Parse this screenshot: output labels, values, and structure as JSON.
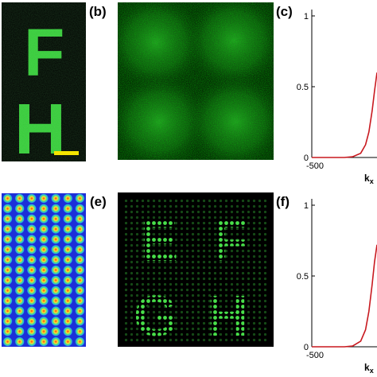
{
  "panels": {
    "a": {
      "letters": [
        "F",
        "H"
      ],
      "scalebar_color": "#f4e500"
    },
    "b": {
      "label": "(b)"
    },
    "c": {
      "label": "(c)"
    },
    "d": {
      "grid_rows": 15,
      "grid_cols": 7
    },
    "e": {
      "label": "(e)",
      "letters": [
        "E",
        "F",
        "G",
        "H"
      ]
    },
    "f": {
      "label": "(f)"
    }
  },
  "colors": {
    "green_signal": "#38c93a",
    "background_dark": "#000000",
    "dot_background": "#1c2fd8",
    "curve": "#c8191f"
  },
  "chart_data": [
    {
      "panel": "c",
      "type": "line",
      "ylim": [
        0,
        1
      ],
      "y_ticks": [
        "1",
        "0.5",
        "0"
      ],
      "x_ticks": [
        "-500"
      ],
      "xlabel_main": "k",
      "xlabel_sub": "x",
      "series": [
        {
          "x": [
            -500,
            -400,
            -300,
            -250,
            -200,
            -170,
            -150,
            -130,
            -115,
            -100
          ],
          "y": [
            0,
            0,
            0,
            0.005,
            0.03,
            0.09,
            0.18,
            0.33,
            0.47,
            0.6
          ]
        }
      ]
    },
    {
      "panel": "f",
      "type": "line",
      "ylim": [
        0,
        1
      ],
      "y_ticks": [
        "1",
        "0.5",
        "0"
      ],
      "x_ticks": [
        "-500"
      ],
      "xlabel_main": "k",
      "xlabel_sub": "x",
      "series": [
        {
          "x": [
            -500,
            -400,
            -300,
            -250,
            -200,
            -170,
            -150,
            -130,
            -115,
            -100
          ],
          "y": [
            0,
            0,
            0,
            0.005,
            0.04,
            0.12,
            0.25,
            0.44,
            0.6,
            0.72
          ]
        }
      ]
    }
  ]
}
